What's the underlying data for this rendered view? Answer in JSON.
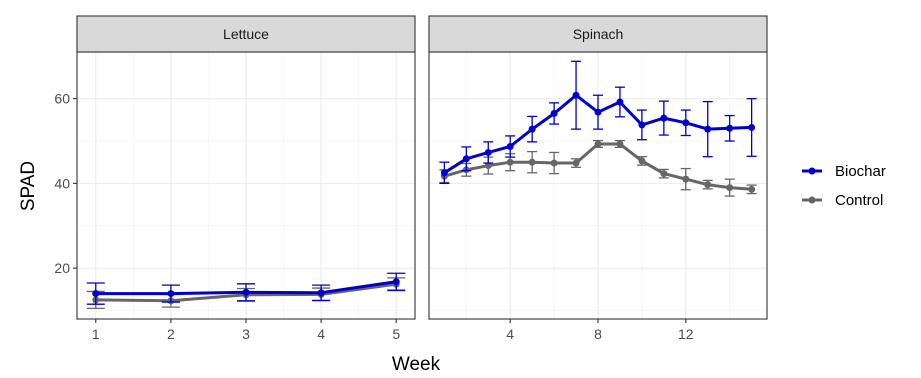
{
  "colors": {
    "biochar": "#0000cc",
    "control": "#666666",
    "strip_fill": "#d9d9d9",
    "grid_major": "#ebebeb",
    "panel_border": "#333333"
  },
  "axes": {
    "xlabel": "Week",
    "ylabel": "SPAD"
  },
  "legend": {
    "position": "right",
    "items": [
      {
        "key": "biochar",
        "label": "Biochar"
      },
      {
        "key": "control",
        "label": "Control"
      }
    ]
  },
  "chart_data": [
    {
      "type": "line",
      "facet": "Lettuce",
      "xlabel": "Week",
      "ylabel": "SPAD",
      "xlim": [
        0.75,
        5.25
      ],
      "ylim": [
        8,
        71
      ],
      "x_ticks": [
        1,
        2,
        3,
        4,
        5
      ],
      "y_ticks": [
        20,
        40,
        60
      ],
      "grid": true,
      "series": [
        {
          "name": "Biochar",
          "color": "#0000cc",
          "x": [
            1,
            2,
            3,
            4,
            5
          ],
          "y": [
            14.0,
            14.0,
            14.3,
            14.2,
            16.8
          ],
          "err": [
            2.5,
            2.0,
            2.0,
            1.8,
            2.0
          ]
        },
        {
          "name": "Control",
          "color": "#666666",
          "x": [
            1,
            2,
            3,
            4,
            5
          ],
          "y": [
            12.5,
            12.3,
            13.7,
            13.8,
            16.2
          ],
          "err": [
            2.0,
            1.5,
            1.5,
            1.5,
            1.5
          ]
        }
      ]
    },
    {
      "type": "line",
      "facet": "Spinach",
      "xlabel": "Week",
      "ylabel": "SPAD",
      "xlim": [
        0.3,
        15.7
      ],
      "ylim": [
        8,
        71
      ],
      "x_ticks": [
        4,
        8,
        12
      ],
      "y_ticks": [
        20,
        40,
        60
      ],
      "grid": true,
      "series": [
        {
          "name": "Biochar",
          "color": "#0000cc",
          "x": [
            1,
            2,
            3,
            4,
            5,
            6,
            7,
            8,
            9,
            10,
            11,
            12,
            13,
            14,
            15
          ],
          "y": [
            42.5,
            45.8,
            47.3,
            48.7,
            52.8,
            56.5,
            60.8,
            56.8,
            59.2,
            53.8,
            55.4,
            54.3,
            52.8,
            53.0,
            53.2
          ],
          "err": [
            2.5,
            2.8,
            2.5,
            2.5,
            3.0,
            2.5,
            8.0,
            4.0,
            3.5,
            3.5,
            4.0,
            3.0,
            6.5,
            3.0,
            6.8
          ]
        },
        {
          "name": "Control",
          "color": "#666666",
          "x": [
            1,
            2,
            3,
            4,
            5,
            6,
            7,
            8,
            9,
            10,
            11,
            12,
            13,
            14,
            15
          ],
          "y": [
            41.7,
            43.2,
            44.2,
            45.0,
            45.0,
            44.8,
            44.8,
            49.3,
            49.3,
            45.3,
            42.3,
            41.0,
            39.7,
            39.0,
            38.6
          ],
          "err": [
            1.5,
            1.5,
            2.0,
            2.0,
            2.5,
            2.5,
            1.0,
            0.8,
            0.8,
            1.0,
            1.0,
            2.5,
            1.0,
            2.0,
            1.0
          ]
        }
      ]
    }
  ]
}
